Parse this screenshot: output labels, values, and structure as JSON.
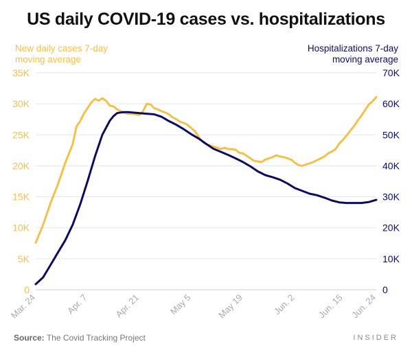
{
  "title": "US daily COVID-19 cases vs. hospitalizations",
  "source_label": "Source:",
  "source_text": "The Covid Tracking Project",
  "brand": "INSIDER",
  "colors": {
    "cases": "#f5c04a",
    "hospitalizations": "#0b0b60",
    "grid": "#e6e6e6",
    "tick": "#aaaaaa"
  },
  "chart_data": {
    "type": "line",
    "title": "US daily COVID-19 cases vs. hospitalizations",
    "x_tick_labels": [
      "Mar. 24",
      "Apr. 7",
      "Apr. 21",
      "May 5",
      "May 19",
      "Jun. 2",
      "Jun. 15",
      "Jun. 24"
    ],
    "x_tick_days": [
      0,
      14,
      28,
      42,
      56,
      70,
      83,
      92
    ],
    "x_range_days": [
      0,
      92
    ],
    "y_left": {
      "label_lines": [
        "New daily cases 7-day",
        "moving average"
      ],
      "range": [
        0,
        35000
      ],
      "ticks": [
        "0",
        "5K",
        "10K",
        "15K",
        "20K",
        "25K",
        "30K",
        "35K"
      ]
    },
    "y_right": {
      "label_lines": [
        "Hospitalizations 7-day",
        "moving average"
      ],
      "range": [
        0,
        70000
      ],
      "ticks": [
        "0",
        "10K",
        "20K",
        "30K",
        "40K",
        "50K",
        "60K",
        "70K"
      ]
    },
    "grid": true,
    "series": [
      {
        "name": "New daily cases 7-day moving average",
        "axis": "left",
        "points": [
          [
            0,
            7600
          ],
          [
            2,
            10500
          ],
          [
            4,
            14000
          ],
          [
            6,
            17000
          ],
          [
            8,
            20500
          ],
          [
            10,
            23500
          ],
          [
            11,
            26300
          ],
          [
            12,
            27200
          ],
          [
            13,
            28400
          ],
          [
            14,
            29300
          ],
          [
            15,
            30200
          ],
          [
            16,
            30800
          ],
          [
            17,
            30500
          ],
          [
            18,
            30900
          ],
          [
            19,
            30500
          ],
          [
            20,
            29700
          ],
          [
            21,
            29600
          ],
          [
            22,
            29100
          ],
          [
            23,
            28800
          ],
          [
            24,
            28500
          ],
          [
            25,
            28400
          ],
          [
            26,
            28400
          ],
          [
            27,
            28300
          ],
          [
            28,
            28200
          ],
          [
            29,
            28800
          ],
          [
            30,
            30000
          ],
          [
            31,
            29900
          ],
          [
            32,
            29300
          ],
          [
            33,
            29100
          ],
          [
            34,
            28800
          ],
          [
            35,
            28600
          ],
          [
            36,
            28300
          ],
          [
            37,
            27800
          ],
          [
            38,
            27500
          ],
          [
            39,
            27100
          ],
          [
            40,
            26900
          ],
          [
            41,
            26600
          ],
          [
            42,
            26100
          ],
          [
            43,
            25600
          ],
          [
            44,
            24700
          ],
          [
            45,
            23900
          ],
          [
            46,
            23500
          ],
          [
            47,
            23300
          ],
          [
            48,
            23100
          ],
          [
            49,
            22900
          ],
          [
            50,
            22700
          ],
          [
            51,
            22900
          ],
          [
            52,
            22700
          ],
          [
            53,
            22700
          ],
          [
            54,
            22600
          ],
          [
            55,
            22100
          ],
          [
            56,
            22000
          ],
          [
            57,
            21600
          ],
          [
            58,
            21200
          ],
          [
            59,
            20800
          ],
          [
            60,
            20700
          ],
          [
            61,
            20600
          ],
          [
            62,
            21000
          ],
          [
            63,
            21200
          ],
          [
            64,
            21400
          ],
          [
            65,
            21700
          ],
          [
            66,
            21500
          ],
          [
            67,
            21400
          ],
          [
            68,
            21200
          ],
          [
            69,
            21000
          ],
          [
            70,
            20500
          ],
          [
            71,
            20100
          ],
          [
            72,
            20000
          ],
          [
            73,
            20200
          ],
          [
            74,
            20400
          ],
          [
            75,
            20600
          ],
          [
            76,
            20900
          ],
          [
            77,
            21200
          ],
          [
            78,
            21500
          ],
          [
            79,
            22000
          ],
          [
            80,
            22300
          ],
          [
            81,
            22700
          ],
          [
            82,
            23600
          ],
          [
            83,
            24200
          ],
          [
            84,
            24900
          ],
          [
            85,
            25700
          ],
          [
            86,
            26400
          ],
          [
            87,
            27300
          ],
          [
            88,
            28100
          ],
          [
            89,
            29000
          ],
          [
            90,
            29900
          ],
          [
            91,
            30400
          ],
          [
            92,
            31100
          ]
        ]
      },
      {
        "name": "Hospitalizations 7-day moving average",
        "axis": "right",
        "points": [
          [
            0,
            1800
          ],
          [
            2,
            4000
          ],
          [
            4,
            8000
          ],
          [
            6,
            12000
          ],
          [
            8,
            16000
          ],
          [
            10,
            21000
          ],
          [
            12,
            27500
          ],
          [
            14,
            35000
          ],
          [
            16,
            43000
          ],
          [
            18,
            50000
          ],
          [
            20,
            54500
          ],
          [
            21,
            56000
          ],
          [
            22,
            57000
          ],
          [
            23,
            57200
          ],
          [
            24,
            57300
          ],
          [
            25,
            57300
          ],
          [
            26,
            57200
          ],
          [
            27,
            57100
          ],
          [
            28,
            57000
          ],
          [
            30,
            56800
          ],
          [
            32,
            56600
          ],
          [
            34,
            55800
          ],
          [
            36,
            54400
          ],
          [
            38,
            53200
          ],
          [
            40,
            51800
          ],
          [
            42,
            50200
          ],
          [
            44,
            48800
          ],
          [
            46,
            47100
          ],
          [
            48,
            45500
          ],
          [
            50,
            44500
          ],
          [
            52,
            43500
          ],
          [
            54,
            42400
          ],
          [
            56,
            41200
          ],
          [
            58,
            39800
          ],
          [
            60,
            38200
          ],
          [
            62,
            37000
          ],
          [
            64,
            36300
          ],
          [
            66,
            35500
          ],
          [
            68,
            34300
          ],
          [
            70,
            32800
          ],
          [
            72,
            31900
          ],
          [
            74,
            31000
          ],
          [
            76,
            30500
          ],
          [
            78,
            29700
          ],
          [
            80,
            28800
          ],
          [
            82,
            28200
          ],
          [
            84,
            28000
          ],
          [
            86,
            28000
          ],
          [
            88,
            28000
          ],
          [
            90,
            28300
          ],
          [
            92,
            29000
          ]
        ]
      }
    ]
  }
}
